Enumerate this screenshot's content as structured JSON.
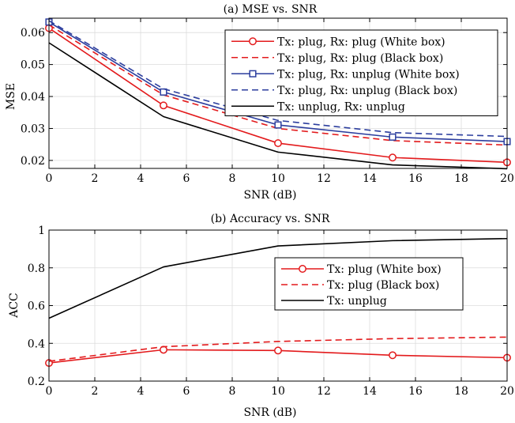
{
  "chart_data": [
    {
      "type": "line",
      "title": "(a) MSE vs. SNR",
      "xlabel": "SNR (dB)",
      "ylabel": "MSE",
      "xlim": [
        0,
        20
      ],
      "ylim": [
        0.0175,
        0.0645
      ],
      "x": [
        0,
        5,
        10,
        15,
        20
      ],
      "xticks": [
        "0",
        "2",
        "4",
        "6",
        "8",
        "10",
        "12",
        "14",
        "16",
        "18",
        "20"
      ],
      "yticks": [
        "0.02",
        "0.03",
        "0.04",
        "0.05",
        "0.06"
      ],
      "grid": true,
      "legend_position": "top-right",
      "series": [
        {
          "name": "Tx: plug, Rx: plug (White box)",
          "values": [
            0.0614,
            0.0372,
            0.0254,
            0.0209,
            0.0194
          ],
          "color": "#e31a1c",
          "dash": "solid",
          "marker": "circle"
        },
        {
          "name": "Tx: plug, Rx: plug (Black box)",
          "values": [
            0.0624,
            0.0405,
            0.03,
            0.0262,
            0.0248
          ],
          "color": "#e31a1c",
          "dash": "dashed",
          "marker": "none"
        },
        {
          "name": "Tx: plug, Rx: unplug (White box)",
          "values": [
            0.0633,
            0.0414,
            0.0311,
            0.0273,
            0.0259
          ],
          "color": "#2c3e9e",
          "dash": "solid",
          "marker": "square"
        },
        {
          "name": "Tx: plug, Rx: unplug (Black box)",
          "values": [
            0.0637,
            0.0424,
            0.0325,
            0.0287,
            0.0275
          ],
          "color": "#2c3e9e",
          "dash": "dashed",
          "marker": "none"
        },
        {
          "name": "Tx: unplug, Rx: unplug",
          "values": [
            0.0568,
            0.0337,
            0.0226,
            0.0186,
            0.0174
          ],
          "color": "#000000",
          "dash": "solid",
          "marker": "none"
        }
      ]
    },
    {
      "type": "line",
      "title": "(b) Accuracy vs. SNR",
      "xlabel": "SNR (dB)",
      "ylabel": "ACC",
      "xlim": [
        0,
        20
      ],
      "ylim": [
        0.2,
        1.0
      ],
      "x": [
        0,
        5,
        10,
        15,
        20
      ],
      "xticks": [
        "0",
        "2",
        "4",
        "6",
        "8",
        "10",
        "12",
        "14",
        "16",
        "18",
        "20"
      ],
      "yticks": [
        "0.2",
        "0.4",
        "0.6",
        "0.8",
        "1"
      ],
      "grid": true,
      "legend_position": "center-right",
      "series": [
        {
          "name": "Tx: plug (White box)",
          "values": [
            0.296,
            0.366,
            0.362,
            0.337,
            0.324
          ],
          "color": "#e31a1c",
          "dash": "solid",
          "marker": "circle"
        },
        {
          "name": "Tx: plug (Black box)",
          "values": [
            0.305,
            0.382,
            0.41,
            0.425,
            0.433
          ],
          "color": "#e31a1c",
          "dash": "dashed",
          "marker": "none"
        },
        {
          "name": "Tx: unplug",
          "values": [
            0.533,
            0.805,
            0.916,
            0.944,
            0.955
          ],
          "color": "#000000",
          "dash": "solid",
          "marker": "none"
        }
      ]
    }
  ]
}
